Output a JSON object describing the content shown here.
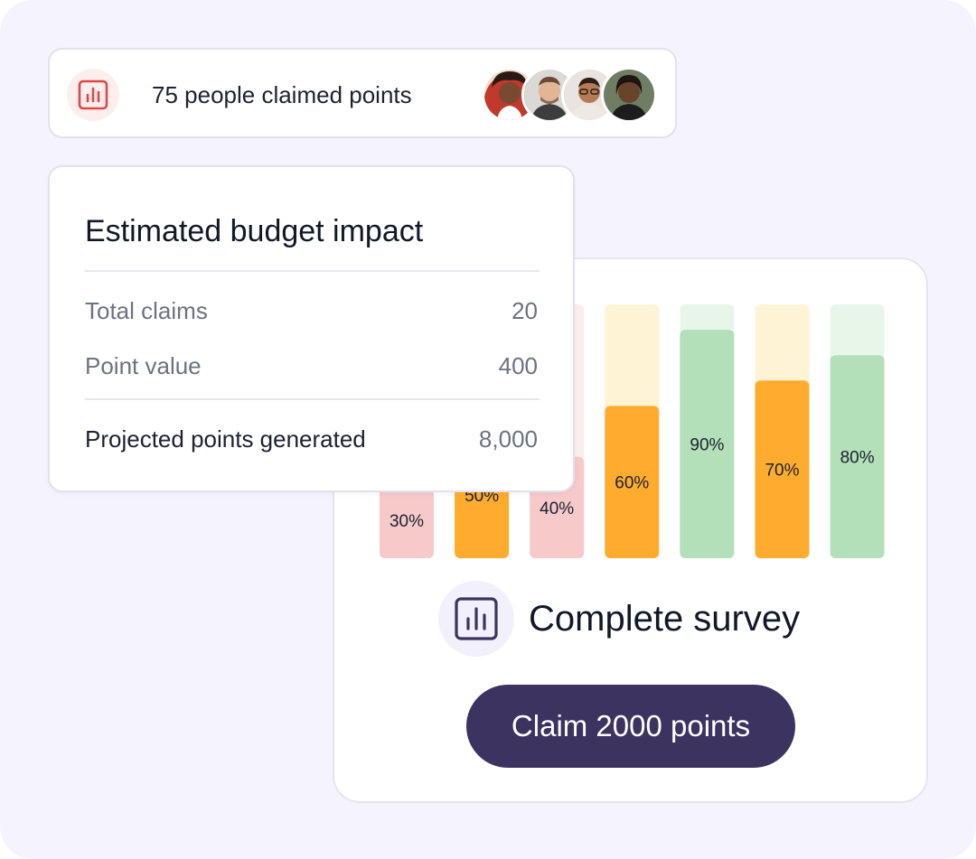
{
  "claimed": {
    "label": "75 people claimed points",
    "icon": "chart-icon",
    "icon_color": "#e04848",
    "avatars": [
      "avatar-1",
      "avatar-2",
      "avatar-3",
      "avatar-4"
    ]
  },
  "budget": {
    "title": "Estimated budget impact",
    "rows": [
      {
        "label": "Total claims",
        "value": "20"
      },
      {
        "label": "Point value",
        "value": "400"
      }
    ],
    "total": {
      "label": "Projected points generated",
      "value": "8,000"
    }
  },
  "survey": {
    "icon": "chart-icon",
    "title": "Complete survey",
    "button_label": "Claim 2000 points",
    "button_color": "#3d3360"
  },
  "chart_data": {
    "type": "bar",
    "values": [
      30,
      50,
      40,
      60,
      90,
      70,
      80
    ],
    "labels": [
      "30%",
      "50%",
      "40%",
      "60%",
      "90%",
      "70%",
      "80%"
    ],
    "colors": [
      "#f7c9c9",
      "#ffab2e",
      "#f7c9c9",
      "#ffab2e",
      "#b3e0b8",
      "#ffab2e",
      "#b3e0b8"
    ],
    "track_colors": [
      "#fdecec",
      "#fff3d6",
      "#fdecec",
      "#fff3d6",
      "#e8f6ea",
      "#fff3d6",
      "#e8f6ea"
    ],
    "ylim": [
      0,
      100
    ]
  }
}
